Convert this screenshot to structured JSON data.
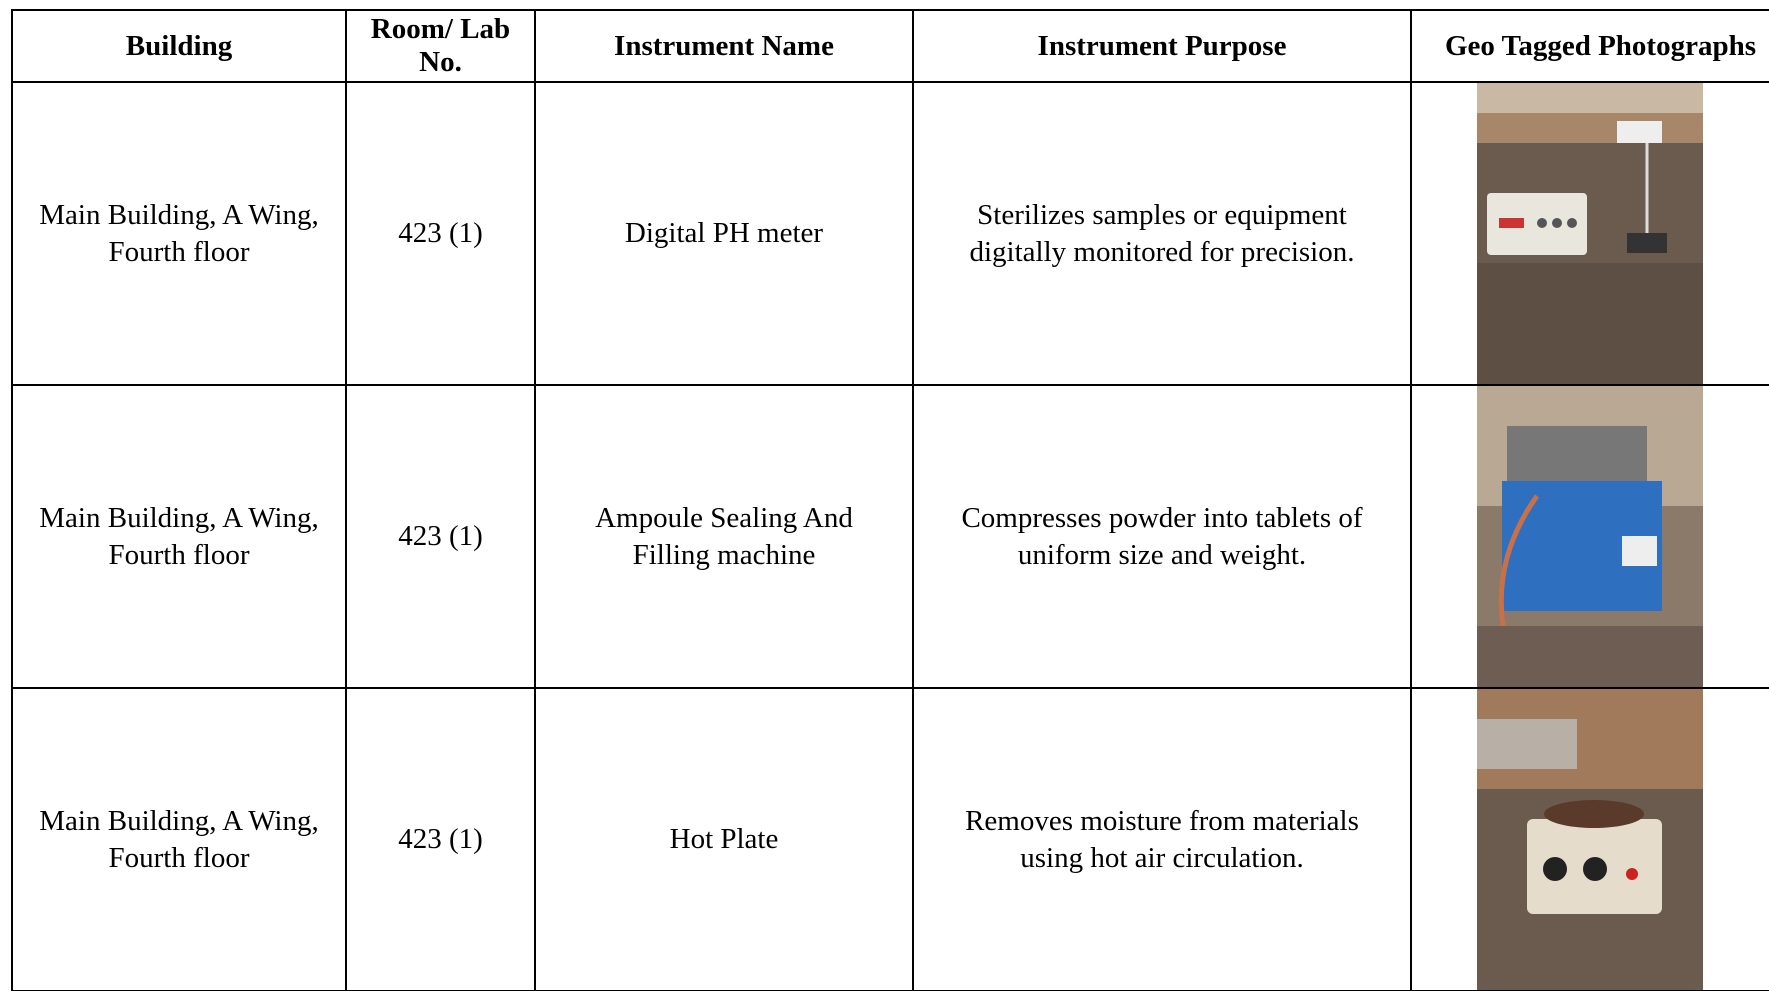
{
  "table": {
    "header": [
      "Building",
      "Room/ Lab No.",
      "Instrument Name",
      "Instrument Purpose",
      "Geo Tagged Photographs"
    ],
    "rows": [
      [
        "Main Building, A Wing, Fourth floor",
        "423 (1)",
        "Digital PH meter",
        "Sterilizes samples or equipment digitally monitored for precision."
      ],
      [
        "Main Building, A Wing, Fourth floor",
        "423 (1)",
        "Ampoule Sealing And Filling machine",
        "Compresses powder into tablets of uniform size and weight."
      ],
      [
        "Main Building, A Wing, Fourth floor",
        "423 (1)",
        "Hot Plate",
        "Removes moisture from materials using hot air circulation."
      ]
    ]
  }
}
